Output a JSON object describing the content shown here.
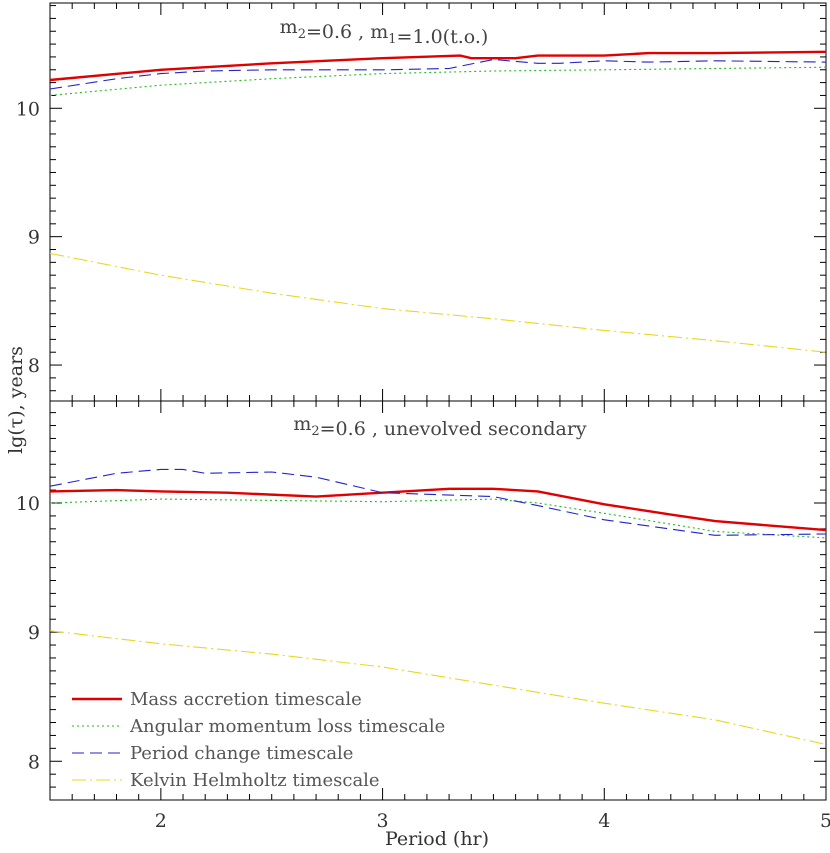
{
  "chart_data": {
    "type": "line",
    "xlabel": "Period (hr)",
    "ylabel": "lg(τ), years",
    "xlim": [
      1.5,
      5.0
    ],
    "xticks": [
      2,
      3,
      4,
      5
    ],
    "grid": false,
    "legend": {
      "placement": "bottom-left of lower panel",
      "entries": [
        {
          "label": "Mass accretion timescale",
          "color": "#e00000",
          "style": "solid"
        },
        {
          "label": "Angular momentum loss timescale",
          "color": "#22bb22",
          "style": "dotted"
        },
        {
          "label": "Period change timescale",
          "color": "#2222cc",
          "style": "dashed"
        },
        {
          "label": "Kelvin Helmholtz timescale",
          "color": "#e8d820",
          "style": "dash-dot"
        }
      ]
    },
    "panels": [
      {
        "title": "m₂=0.6 , m₁=1.0(t.o.)",
        "ylim": [
          7.72,
          10.82
        ],
        "yticks": [
          8,
          9,
          10
        ],
        "series": [
          {
            "name": "Mass accretion timescale",
            "color": "#e00000",
            "x": [
              1.5,
              2.0,
              2.5,
              3.0,
              3.35,
              3.4,
              3.6,
              3.7,
              4.0,
              4.2,
              4.5,
              5.0
            ],
            "y": [
              10.22,
              10.3,
              10.35,
              10.39,
              10.41,
              10.39,
              10.39,
              10.41,
              10.41,
              10.43,
              10.43,
              10.44
            ]
          },
          {
            "name": "Angular momentum loss timescale",
            "color": "#22bb22",
            "x": [
              1.5,
              2.0,
              2.5,
              3.0,
              3.5,
              4.0,
              4.5,
              5.0
            ],
            "y": [
              10.1,
              10.18,
              10.23,
              10.27,
              10.29,
              10.3,
              10.31,
              10.32
            ]
          },
          {
            "name": "Period change timescale",
            "color": "#2222cc",
            "x": [
              1.5,
              1.8,
              2.0,
              2.2,
              2.5,
              3.0,
              3.3,
              3.5,
              3.7,
              3.8,
              4.0,
              4.2,
              4.5,
              5.0
            ],
            "y": [
              10.15,
              10.23,
              10.27,
              10.29,
              10.3,
              10.3,
              10.31,
              10.38,
              10.35,
              10.35,
              10.37,
              10.36,
              10.37,
              10.36
            ]
          },
          {
            "name": "Kelvin Helmholtz timescale",
            "color": "#e8d820",
            "x": [
              1.5,
              2.0,
              2.5,
              3.0,
              3.5,
              4.0,
              4.5,
              5.0
            ],
            "y": [
              8.87,
              8.7,
              8.56,
              8.44,
              8.36,
              8.27,
              8.19,
              8.1
            ]
          }
        ]
      },
      {
        "title": "m₂=0.6 , unevolved secondary",
        "ylim": [
          7.7,
          10.79
        ],
        "yticks": [
          8,
          9,
          10
        ],
        "series": [
          {
            "name": "Mass accretion timescale",
            "color": "#e00000",
            "x": [
              1.5,
              1.8,
              2.0,
              2.3,
              2.7,
              3.0,
              3.3,
              3.5,
              3.7,
              4.0,
              4.3,
              4.5,
              5.0
            ],
            "y": [
              10.09,
              10.1,
              10.09,
              10.08,
              10.05,
              10.08,
              10.11,
              10.11,
              10.09,
              9.99,
              9.91,
              9.86,
              9.79
            ]
          },
          {
            "name": "Angular momentum loss timescale",
            "color": "#22bb22",
            "x": [
              1.5,
              2.0,
              2.5,
              3.0,
              3.5,
              3.7,
              4.0,
              4.5,
              5.0
            ],
            "y": [
              10.0,
              10.03,
              10.02,
              10.01,
              10.03,
              10.0,
              9.92,
              9.78,
              9.73
            ]
          },
          {
            "name": "Period change timescale",
            "color": "#2222cc",
            "x": [
              1.5,
              1.8,
              2.0,
              2.1,
              2.2,
              2.5,
              2.7,
              2.9,
              3.0,
              3.5,
              3.7,
              4.0,
              4.5,
              5.0
            ],
            "y": [
              10.13,
              10.23,
              10.26,
              10.26,
              10.23,
              10.24,
              10.2,
              10.12,
              10.08,
              10.05,
              9.98,
              9.87,
              9.75,
              9.76
            ]
          },
          {
            "name": "Kelvin Helmholtz timescale",
            "color": "#e8d820",
            "x": [
              1.5,
              2.0,
              2.5,
              3.0,
              3.5,
              4.0,
              4.5,
              5.0
            ],
            "y": [
              9.01,
              8.91,
              8.83,
              8.73,
              8.59,
              8.45,
              8.32,
              8.13
            ]
          }
        ]
      }
    ]
  }
}
